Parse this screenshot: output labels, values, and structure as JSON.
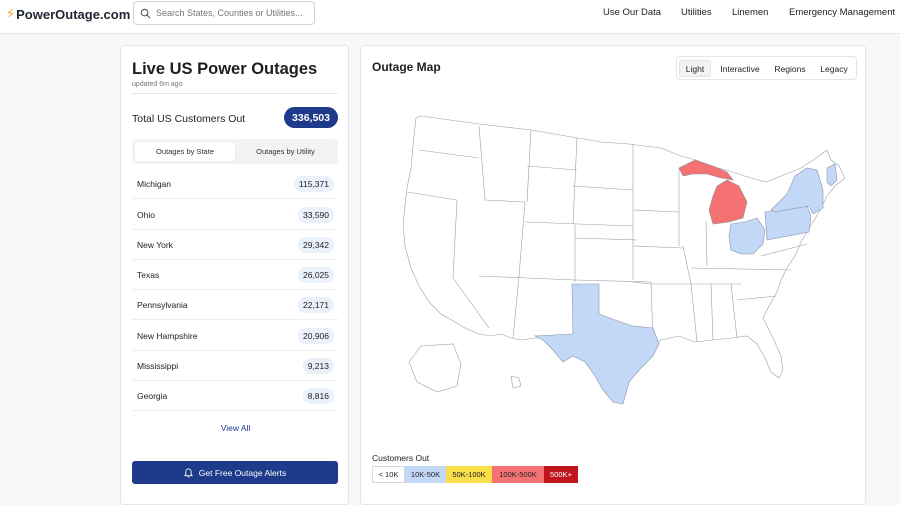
{
  "header": {
    "logo_text": "PowerOutage.com",
    "search_placeholder": "Search States, Counties or Utilities...",
    "nav": [
      "Use Our Data",
      "Utilities",
      "Linemen",
      "Emergency Management"
    ]
  },
  "left_panel": {
    "title": "Live US Power Outages",
    "updated": "updated 6m ago",
    "total_label": "Total US Customers Out",
    "total_value": "336,503",
    "tabs": [
      "Outages by State",
      "Outages by Utility"
    ],
    "states": [
      {
        "name": "Michigan",
        "value": "115,371"
      },
      {
        "name": "Ohio",
        "value": "33,590"
      },
      {
        "name": "New York",
        "value": "29,342"
      },
      {
        "name": "Texas",
        "value": "26,025"
      },
      {
        "name": "Pennsylvania",
        "value": "22,171"
      },
      {
        "name": "New Hampshire",
        "value": "20,906"
      },
      {
        "name": "Mississippi",
        "value": "9,213"
      },
      {
        "name": "Georgia",
        "value": "8,816"
      }
    ],
    "view_all": "View All",
    "alerts_button": "Get Free Outage Alerts"
  },
  "map_panel": {
    "title": "Outage Map",
    "modes": [
      "Light",
      "Interactive",
      "Regions",
      "Legacy"
    ],
    "legend_title": "Customers Out",
    "legend": [
      {
        "label": "< 10K",
        "color": "#ffffff"
      },
      {
        "label": "10K-50K",
        "color": "#c3d8f7"
      },
      {
        "label": "50K-100K",
        "color": "#f9e04b"
      },
      {
        "label": "100K-500K",
        "color": "#f47272"
      },
      {
        "label": "500K+",
        "color": "#c0151c"
      }
    ],
    "state_colors": {
      "low": "#ffffff",
      "mid": "#c3d8f7",
      "high": "#f47272"
    }
  }
}
